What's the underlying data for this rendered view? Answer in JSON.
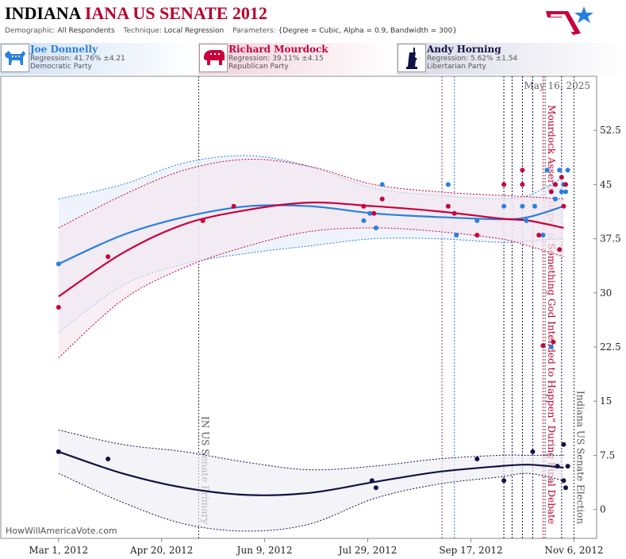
{
  "header": {
    "title_state": "INDIANA",
    "title_race": "IANA US SENATE 2012",
    "demographic_label": "Demographic:",
    "demographic_value": "All Respondents",
    "technique_label": "Technique:",
    "technique_value": "Local Regression",
    "parameters_label": "Parameters:",
    "parameters_value": "{Degree = Cubic, Alpha = 0.9, Bandwidth = 300}"
  },
  "candidates": [
    {
      "name": "Joe Donnelly",
      "regression": "Regression: 41.76% ±4.21",
      "party": "Democratic Party",
      "icon": "donkey-icon",
      "color": "#2a7fde"
    },
    {
      "name": "Richard Mourdock",
      "regression": "Regression: 39.11% ±4.15",
      "party": "Republican Party",
      "icon": "elephant-icon",
      "color": "#c8003c"
    },
    {
      "name": "Andy Horning",
      "regression": "Regression: 5.62% ±1.54",
      "party": "Libertarian Party",
      "icon": "liberty-torch-icon",
      "color": "#121245"
    }
  ],
  "chart_data": {
    "type": "scatter",
    "date_stamp": "May 16, 2025",
    "credit": "HowWillAmericaVote.com",
    "xlim": [
      "2012-02-02",
      "2012-11-17"
    ],
    "ylim": [
      -4,
      60
    ],
    "y_ticks": [
      "0",
      "7.5",
      "15",
      "22.5",
      "30",
      "37.5",
      "45",
      "52.5"
    ],
    "x_ticks": [
      {
        "date": "2012-03-01",
        "label": "Mar 1, 2012"
      },
      {
        "date": "2012-04-20",
        "label": "Apr 20, 2012"
      },
      {
        "date": "2012-06-09",
        "label": "Jun 9, 2012"
      },
      {
        "date": "2012-07-29",
        "label": "Jul 29, 2012"
      },
      {
        "date": "2012-09-17",
        "label": "Sep 17, 2012"
      },
      {
        "date": "2012-11-06",
        "label": "Nov 6, 2012"
      }
    ],
    "events": [
      {
        "date": "2012-05-08",
        "label": "IN US Senate Primary",
        "color": "#555555"
      },
      {
        "date": "2012-10-23",
        "label": "Mourdock Asserts \"Rape\" is Something God Intended to Happen\" During Final Debate",
        "color": "#b8002e"
      },
      {
        "date": "2012-11-06",
        "label": "Indiana US Senate Election",
        "color": "#555555"
      }
    ],
    "guide_lines": [
      {
        "date": "2012-09-03",
        "color": "#8a3a8a"
      },
      {
        "date": "2012-09-09",
        "color": "#2a7fde"
      },
      {
        "date": "2012-10-03",
        "color": "#121245"
      },
      {
        "date": "2012-10-07",
        "color": "#121245"
      },
      {
        "date": "2012-10-12",
        "color": "#121245"
      },
      {
        "date": "2012-10-17",
        "color": "#121245"
      },
      {
        "date": "2012-10-22",
        "color": "#c8003c"
      },
      {
        "date": "2012-10-31",
        "color": "#121245"
      }
    ],
    "series": [
      {
        "name": "Joe Donnelly",
        "color": "#2a7fde",
        "band_fill": "#e6eefa",
        "points": [
          [
            "2012-03-01",
            34
          ],
          [
            "2012-07-27",
            40
          ],
          [
            "2012-07-30",
            41
          ],
          [
            "2012-08-02",
            39
          ],
          [
            "2012-08-05",
            45
          ],
          [
            "2012-09-06",
            45
          ],
          [
            "2012-09-10",
            38
          ],
          [
            "2012-09-20",
            40
          ],
          [
            "2012-10-03",
            42
          ],
          [
            "2012-10-12",
            42
          ],
          [
            "2012-10-14",
            40
          ],
          [
            "2012-10-18",
            42
          ],
          [
            "2012-10-22",
            38
          ],
          [
            "2012-10-24",
            47
          ],
          [
            "2012-10-26",
            22.5
          ],
          [
            "2012-10-28",
            43
          ],
          [
            "2012-10-30",
            47
          ],
          [
            "2012-10-31",
            44
          ],
          [
            "2012-11-01",
            45
          ],
          [
            "2012-11-02",
            44
          ],
          [
            "2012-11-03",
            47
          ]
        ],
        "trend": [
          [
            "2012-03-01",
            34
          ],
          [
            "2012-04-01",
            38
          ],
          [
            "2012-05-01",
            40.5
          ],
          [
            "2012-06-01",
            42
          ],
          [
            "2012-07-01",
            42
          ],
          [
            "2012-08-01",
            41
          ],
          [
            "2012-09-01",
            40.5
          ],
          [
            "2012-10-01",
            40.2
          ],
          [
            "2012-10-15",
            40.5
          ],
          [
            "2012-11-01",
            42
          ]
        ],
        "upper": [
          [
            "2012-03-01",
            43
          ],
          [
            "2012-04-01",
            45
          ],
          [
            "2012-05-01",
            48
          ],
          [
            "2012-06-01",
            49
          ],
          [
            "2012-07-01",
            47.5
          ],
          [
            "2012-08-01",
            44.5
          ],
          [
            "2012-09-01",
            43.5
          ],
          [
            "2012-10-01",
            43
          ],
          [
            "2012-10-15",
            43.5
          ],
          [
            "2012-11-01",
            46
          ]
        ],
        "lower": [
          [
            "2012-03-01",
            24.5
          ],
          [
            "2012-04-01",
            31
          ],
          [
            "2012-05-01",
            34
          ],
          [
            "2012-06-01",
            35.5
          ],
          [
            "2012-07-01",
            36.5
          ],
          [
            "2012-08-01",
            37.5
          ],
          [
            "2012-09-01",
            37.5
          ],
          [
            "2012-10-01",
            37
          ],
          [
            "2012-10-15",
            37.2
          ],
          [
            "2012-11-01",
            37.5
          ]
        ]
      },
      {
        "name": "Richard Mourdock",
        "color": "#c8003c",
        "band_fill": "#f3e6ee",
        "points": [
          [
            "2012-03-01",
            28
          ],
          [
            "2012-03-25",
            35
          ],
          [
            "2012-05-10",
            40
          ],
          [
            "2012-05-25",
            42
          ],
          [
            "2012-07-27",
            42
          ],
          [
            "2012-08-01",
            41
          ],
          [
            "2012-08-05",
            43
          ],
          [
            "2012-09-06",
            42
          ],
          [
            "2012-09-09",
            41
          ],
          [
            "2012-09-20",
            38
          ],
          [
            "2012-10-03",
            45
          ],
          [
            "2012-10-12",
            47
          ],
          [
            "2012-10-12",
            45
          ],
          [
            "2012-10-20",
            38
          ],
          [
            "2012-10-22",
            22.7
          ],
          [
            "2012-10-26",
            44
          ],
          [
            "2012-10-27",
            23.2
          ],
          [
            "2012-10-28",
            45
          ],
          [
            "2012-10-30",
            36
          ],
          [
            "2012-10-31",
            46
          ],
          [
            "2012-11-01",
            42
          ],
          [
            "2012-11-02",
            45
          ]
        ],
        "trend": [
          [
            "2012-03-01",
            29.5
          ],
          [
            "2012-04-01",
            35.5
          ],
          [
            "2012-05-01",
            39.5
          ],
          [
            "2012-06-01",
            41.5
          ],
          [
            "2012-07-01",
            42.5
          ],
          [
            "2012-08-01",
            42
          ],
          [
            "2012-09-01",
            41.3
          ],
          [
            "2012-10-01",
            40.3
          ],
          [
            "2012-10-15",
            40
          ],
          [
            "2012-11-01",
            39
          ]
        ],
        "upper": [
          [
            "2012-03-01",
            39
          ],
          [
            "2012-04-01",
            43.5
          ],
          [
            "2012-05-01",
            47
          ],
          [
            "2012-06-01",
            48.5
          ],
          [
            "2012-07-01",
            47.5
          ],
          [
            "2012-08-01",
            45
          ],
          [
            "2012-09-01",
            44
          ],
          [
            "2012-10-01",
            43.5
          ],
          [
            "2012-10-15",
            43.3
          ],
          [
            "2012-11-01",
            43
          ]
        ],
        "lower": [
          [
            "2012-03-01",
            21
          ],
          [
            "2012-04-01",
            29
          ],
          [
            "2012-05-01",
            33.5
          ],
          [
            "2012-06-01",
            36.5
          ],
          [
            "2012-07-01",
            38.5
          ],
          [
            "2012-08-01",
            39
          ],
          [
            "2012-09-01",
            38.5
          ],
          [
            "2012-10-01",
            37.5
          ],
          [
            "2012-10-15",
            36.5
          ],
          [
            "2012-11-01",
            35
          ]
        ]
      },
      {
        "name": "Andy Horning",
        "color": "#121245",
        "band_fill": "#eeeef5",
        "points": [
          [
            "2012-03-01",
            8
          ],
          [
            "2012-03-25",
            7
          ],
          [
            "2012-07-31",
            4
          ],
          [
            "2012-08-02",
            3
          ],
          [
            "2012-09-20",
            7
          ],
          [
            "2012-10-03",
            4
          ],
          [
            "2012-10-17",
            8
          ],
          [
            "2012-10-29",
            6
          ],
          [
            "2012-11-01",
            9
          ],
          [
            "2012-11-01",
            4
          ],
          [
            "2012-11-02",
            3
          ],
          [
            "2012-11-03",
            6
          ]
        ],
        "trend": [
          [
            "2012-03-01",
            8
          ],
          [
            "2012-04-01",
            5
          ],
          [
            "2012-05-01",
            3
          ],
          [
            "2012-06-01",
            2
          ],
          [
            "2012-07-01",
            2.3
          ],
          [
            "2012-08-01",
            3.8
          ],
          [
            "2012-09-01",
            5.2
          ],
          [
            "2012-10-01",
            6
          ],
          [
            "2012-10-15",
            6.2
          ],
          [
            "2012-11-01",
            5.8
          ]
        ],
        "upper": [
          [
            "2012-03-01",
            11
          ],
          [
            "2012-04-01",
            9
          ],
          [
            "2012-05-01",
            8
          ],
          [
            "2012-06-01",
            6.5
          ],
          [
            "2012-07-01",
            5.5
          ],
          [
            "2012-08-01",
            6
          ],
          [
            "2012-09-01",
            7
          ],
          [
            "2012-10-01",
            7.5
          ],
          [
            "2012-10-15",
            7.5
          ],
          [
            "2012-11-01",
            7.5
          ]
        ],
        "lower": [
          [
            "2012-03-01",
            5
          ],
          [
            "2012-04-01",
            1
          ],
          [
            "2012-05-01",
            -2
          ],
          [
            "2012-06-01",
            -3
          ],
          [
            "2012-07-01",
            -2
          ],
          [
            "2012-08-01",
            1.5
          ],
          [
            "2012-09-01",
            3.5
          ],
          [
            "2012-10-01",
            4.5
          ],
          [
            "2012-10-15",
            5
          ],
          [
            "2012-11-01",
            4
          ]
        ]
      }
    ]
  }
}
